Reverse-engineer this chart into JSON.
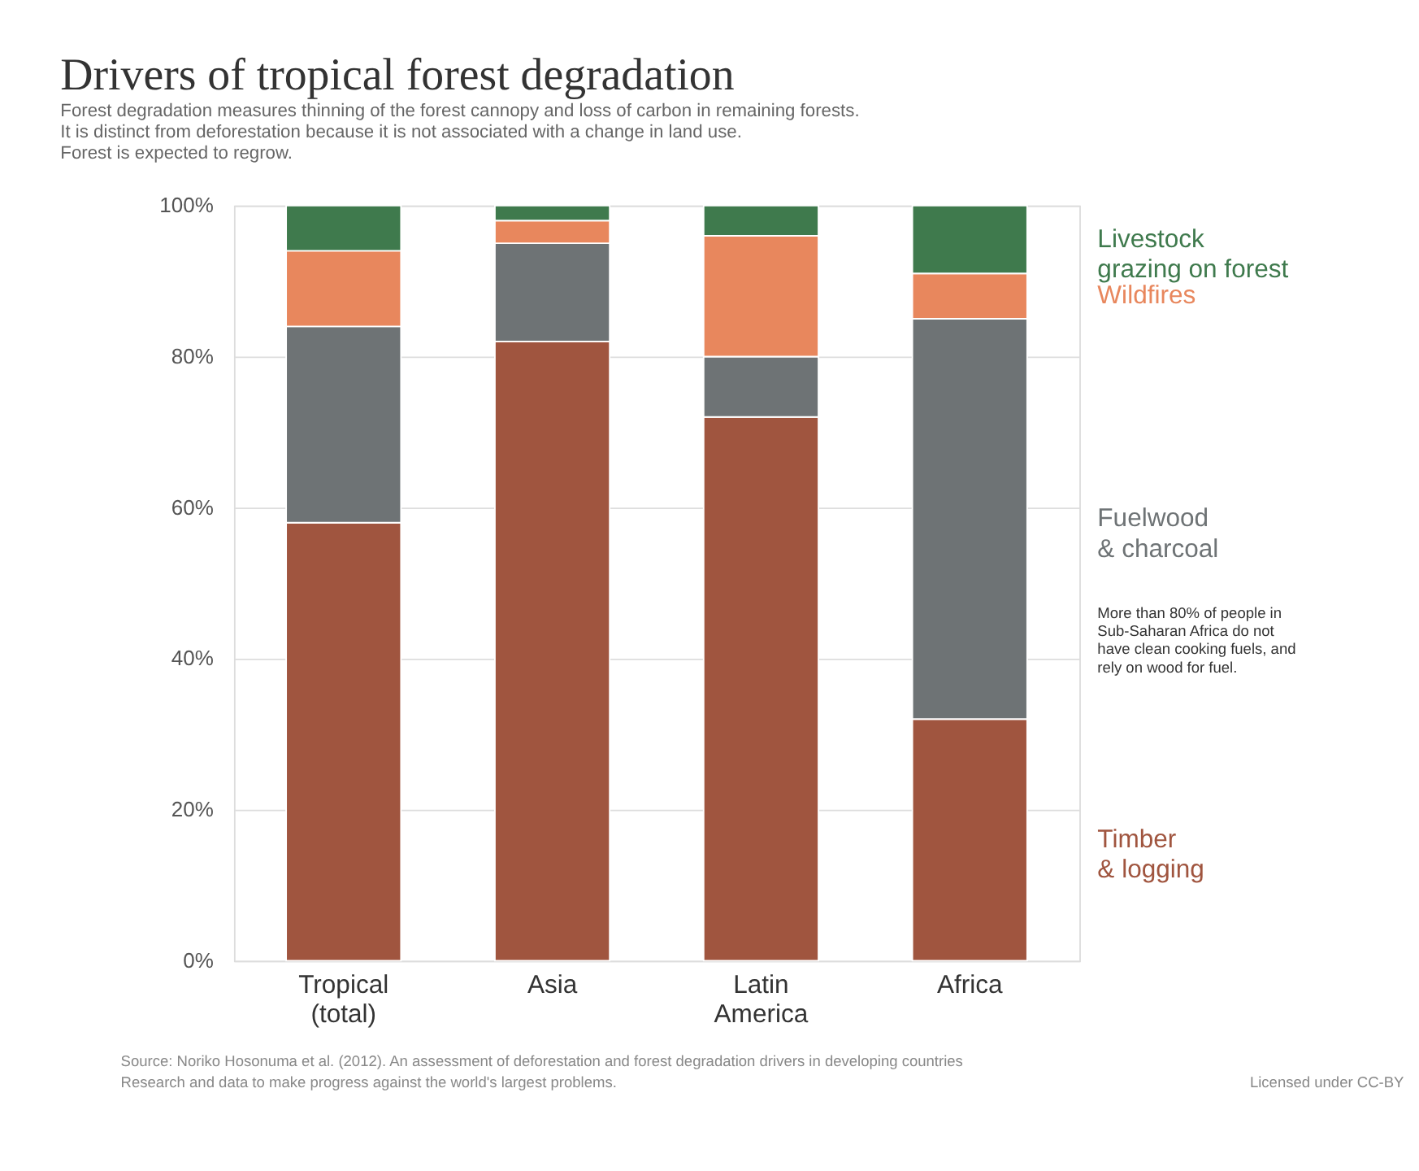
{
  "chart_data": {
    "type": "bar",
    "stacked": true,
    "title": "Drivers of tropical forest degradation",
    "subtitle": [
      "Forest degradation measures thinning of the forest cannopy and loss of carbon in remaining forests.",
      "It is distinct from deforestation because it is not associated with a change in land use.",
      "Forest is expected to regrow."
    ],
    "categories": [
      "Tropical\n(total)",
      "Asia",
      "Latin\nAmerica",
      "Africa"
    ],
    "series": [
      {
        "name": "Timber\n& logging",
        "color": "#a0553f",
        "values": [
          58,
          82,
          72,
          32
        ]
      },
      {
        "name": "Fuelwood\n& charcoal",
        "color": "#6e7375",
        "values": [
          26,
          13,
          8,
          53
        ]
      },
      {
        "name": "Wildfires",
        "color": "#e8875d",
        "values": [
          10,
          3,
          16,
          6
        ]
      },
      {
        "name": "Livestock\ngrazing on forest",
        "color": "#3f7a4d",
        "values": [
          6,
          2,
          4,
          9
        ]
      }
    ],
    "ylim": [
      0,
      100
    ],
    "yticks": [
      {
        "value": 0,
        "label": "0%"
      },
      {
        "value": 20,
        "label": "20%"
      },
      {
        "value": 40,
        "label": "40%"
      },
      {
        "value": 60,
        "label": "60%"
      },
      {
        "value": 80,
        "label": "80%"
      },
      {
        "value": 100,
        "label": "100%"
      }
    ],
    "grid": "y",
    "legend": "right",
    "annotations": [
      "More than 80% of people in\nSub-Saharan Africa do not\nhave clean cooking fuels, and\nrely on wood for fuel.",
      "Source: Noriko Hosonuma et al. (2012). An assessment of deforestation and forest degradation drivers in developing countries",
      "Research and data to make progress against the world's largest problems.",
      "Licensed under CC-BY"
    ]
  }
}
